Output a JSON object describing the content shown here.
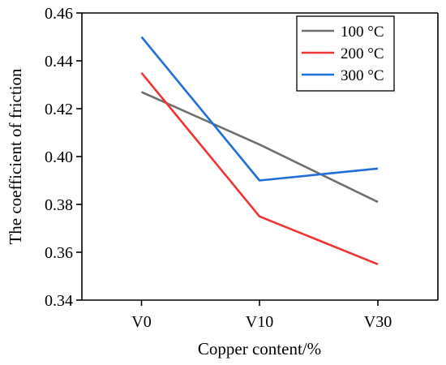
{
  "chart_data": {
    "type": "line",
    "categories": [
      "V0",
      "V10",
      "V30"
    ],
    "xlabel": "Copper content/%",
    "ylabel": "The coefficient of friction",
    "ylim": [
      0.34,
      0.46
    ],
    "yticks": [
      "0.34",
      "0.36",
      "0.38",
      "0.40",
      "0.42",
      "0.44",
      "0.46"
    ],
    "grid": false,
    "legend_position": "top-right",
    "series": [
      {
        "name": "100 °C",
        "color": "#6f6f6f",
        "values": [
          0.427,
          0.405,
          0.381
        ]
      },
      {
        "name": "200 °C",
        "color": "#ee3333",
        "values": [
          0.435,
          0.375,
          0.355
        ]
      },
      {
        "name": "300 °C",
        "color": "#1f6fd6",
        "values": [
          0.45,
          0.39,
          0.395
        ]
      }
    ]
  }
}
